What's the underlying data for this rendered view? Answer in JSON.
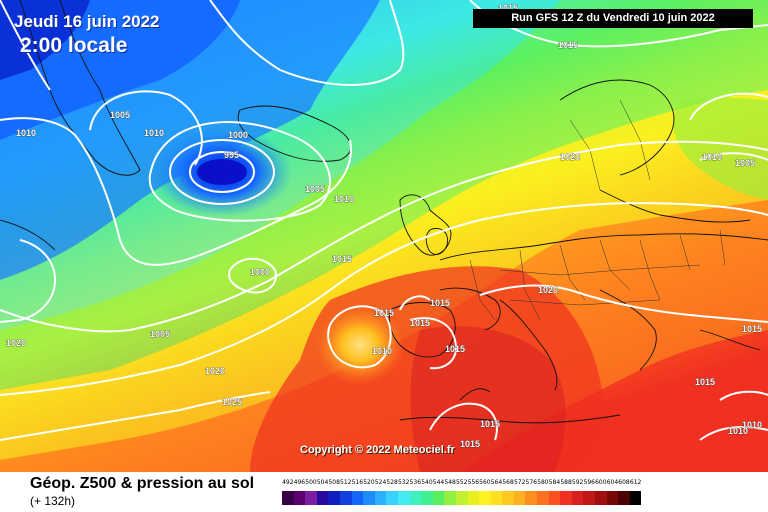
{
  "header": {
    "date": "Jeudi 16 juin 2022",
    "time": "2:00 locale",
    "run": "Run GFS 12 Z du Vendredi 10 juin 2022"
  },
  "copyright": "Copyright © 2022 Meteociel.fr",
  "legend": {
    "title": "Géop. Z500 & pression au sol",
    "subtitle": "(+ 132h)",
    "values": [
      "492",
      "496",
      "500",
      "504",
      "508",
      "512",
      "516",
      "520",
      "524",
      "528",
      "532",
      "536",
      "540",
      "544",
      "548",
      "552",
      "556",
      "560",
      "564",
      "568",
      "572",
      "576",
      "580",
      "584",
      "588",
      "592",
      "596",
      "600",
      "604",
      "608",
      "612"
    ],
    "colors": [
      "#3a0045",
      "#5a0070",
      "#7a1fa0",
      "#2a0aa0",
      "#1020c0",
      "#1040e0",
      "#1466ff",
      "#1e8cff",
      "#2cb0ff",
      "#38d2ff",
      "#40ecf0",
      "#3cf0c0",
      "#40f090",
      "#58f060",
      "#90f040",
      "#c0f030",
      "#e8f020",
      "#fff020",
      "#ffe020",
      "#ffc820",
      "#ffb020",
      "#ff9020",
      "#ff7020",
      "#ff5020",
      "#f03020",
      "#d82020",
      "#c01818",
      "#a01010",
      "#780808",
      "#4a0404",
      "#000000"
    ]
  },
  "isobars": [
    {
      "label": "1015",
      "color": "#ffffff"
    },
    {
      "label": "1005",
      "color": "#ffffff"
    },
    {
      "label": "1010",
      "color": "#ffffff"
    },
    {
      "label": "1010",
      "color": "#ffffff"
    },
    {
      "label": "1000",
      "color": "#ffffff"
    },
    {
      "label": "995",
      "color": "#ffffff"
    },
    {
      "label": "1005",
      "color": "#ffffff"
    },
    {
      "label": "1010",
      "color": "#ffffff"
    },
    {
      "label": "1020",
      "color": "#ffffff"
    },
    {
      "label": "1010",
      "color": "#ffffff"
    },
    {
      "label": "1005",
      "color": "#ffffff"
    },
    {
      "label": "1015",
      "color": "#ffffff"
    },
    {
      "label": "1000",
      "color": "#ffffff"
    },
    {
      "label": "1005",
      "color": "#ffffff"
    },
    {
      "label": "1015",
      "color": "#ffffff"
    },
    {
      "label": "1010",
      "color": "#ffffff"
    },
    {
      "label": "1015",
      "color": "#ffffff"
    },
    {
      "label": "1015",
      "color": "#ffffff"
    },
    {
      "label": "1020",
      "color": "#ffffff"
    },
    {
      "label": "1020",
      "color": "#ffffff"
    },
    {
      "label": "1020",
      "color": "#ffffff"
    },
    {
      "label": "1025",
      "color": "#ffffff"
    },
    {
      "label": "1015",
      "color": "#ffffff"
    },
    {
      "label": "1015",
      "color": "#ffffff"
    },
    {
      "label": "1015",
      "color": "#ffffff"
    },
    {
      "label": "1010",
      "color": "#ffffff"
    },
    {
      "label": "1010",
      "color": "#ffffff"
    },
    {
      "label": "1015",
      "color": "#ffffff"
    },
    {
      "label": "1015",
      "color": "#ffffff"
    },
    {
      "label": "1015",
      "color": "#ffffff"
    }
  ]
}
